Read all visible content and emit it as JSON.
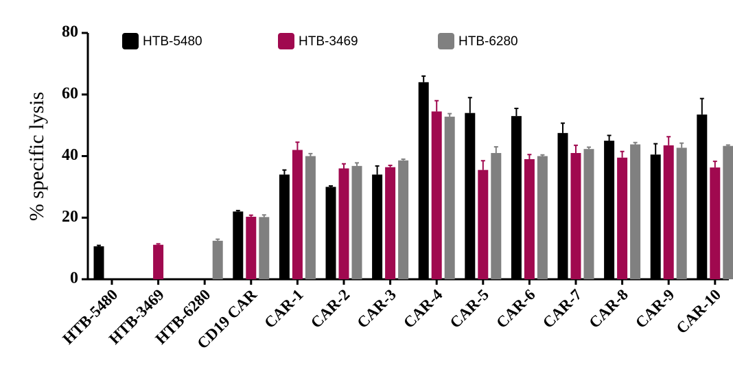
{
  "chart_data": {
    "type": "bar",
    "y_label": "% specific lysis",
    "categories": [
      "HTB-5480",
      "HTB-3469",
      "HTB-6280",
      "CD19 CAR",
      "CAR-1",
      "CAR-2",
      "CAR-3",
      "CAR-4",
      "CAR-5",
      "CAR-6",
      "CAR-7",
      "CAR-8",
      "CAR-9",
      "CAR-10"
    ],
    "series": [
      {
        "name": "HTB-5480",
        "color": "#000000",
        "values": [
          10.7,
          null,
          null,
          22,
          34,
          30,
          34,
          64,
          54,
          53,
          47.5,
          45,
          40.5,
          53.5
        ],
        "errors": [
          0.3,
          null,
          null,
          0.3,
          1.5,
          0.3,
          2.8,
          2,
          5,
          2.5,
          3.2,
          1.7,
          3.5,
          5.2
        ]
      },
      {
        "name": "HTB-3469",
        "color": "#a0094f",
        "values": [
          null,
          11.2,
          null,
          20.3,
          42,
          36,
          36.4,
          54.5,
          35.5,
          39,
          41,
          39.5,
          43.5,
          36.3
        ],
        "errors": [
          null,
          0.3,
          null,
          0.5,
          2.5,
          1.5,
          0.6,
          3.5,
          3,
          1.5,
          2.5,
          2,
          2.8,
          2
        ]
      },
      {
        "name": "HTB-6280",
        "color": "#808080",
        "values": [
          null,
          null,
          12.5,
          20.2,
          40,
          36.8,
          38.6,
          52.8,
          41,
          40,
          42.3,
          43.8,
          42.7,
          43.3
        ],
        "errors": [
          null,
          null,
          0.5,
          0.7,
          0.8,
          1,
          0.4,
          1,
          2,
          0.4,
          0.6,
          0.6,
          1.5,
          0.3
        ]
      }
    ],
    "ylim": [
      0,
      80
    ],
    "yticks": [
      0,
      20,
      40,
      60,
      80
    ],
    "legend": "top"
  }
}
